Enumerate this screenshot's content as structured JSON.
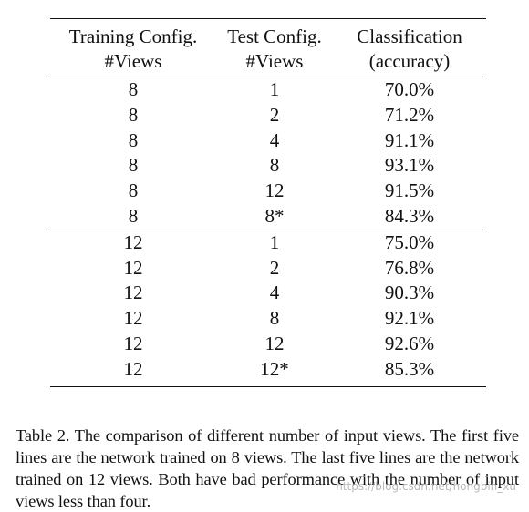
{
  "table": {
    "headers": [
      {
        "line1": "Training Config.",
        "line2": "#Views"
      },
      {
        "line1": "Test Config.",
        "line2": "#Views"
      },
      {
        "line1": "Classification",
        "line2": "(accuracy)"
      }
    ],
    "group1": [
      {
        "train": "8",
        "test": "1",
        "acc": "70.0%"
      },
      {
        "train": "8",
        "test": "2",
        "acc": "71.2%"
      },
      {
        "train": "8",
        "test": "4",
        "acc": "91.1%"
      },
      {
        "train": "8",
        "test": "8",
        "acc": "93.1%"
      },
      {
        "train": "8",
        "test": "12",
        "acc": "91.5%"
      },
      {
        "train": "8",
        "test": "8*",
        "acc": "84.3%"
      }
    ],
    "group2": [
      {
        "train": "12",
        "test": "1",
        "acc": "75.0%"
      },
      {
        "train": "12",
        "test": "2",
        "acc": "76.8%"
      },
      {
        "train": "12",
        "test": "4",
        "acc": "90.3%"
      },
      {
        "train": "12",
        "test": "8",
        "acc": "92.1%"
      },
      {
        "train": "12",
        "test": "12",
        "acc": "92.6%"
      },
      {
        "train": "12",
        "test": "12*",
        "acc": "85.3%"
      }
    ]
  },
  "caption": "Table 2. The comparison of different number of input views. The first five lines are the network trained on 8 views. The last five lines are the network trained on 12 views. Both have bad performance with the number of input views less than four.",
  "watermark": "https://blog.csdn.net/hongbin_xu"
}
